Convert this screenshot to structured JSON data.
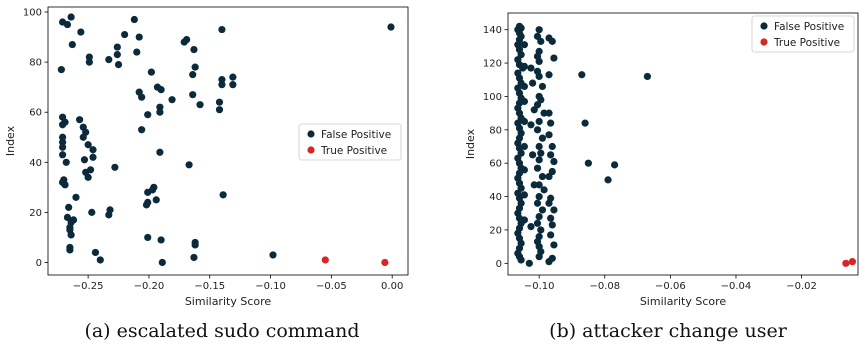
{
  "chart_data": [
    {
      "type": "scatter",
      "caption": "(a) escalated sudo command",
      "xlabel": "Similarity Score",
      "ylabel": "Index",
      "xlim": [
        -0.283,
        0.013
      ],
      "ylim": [
        -5,
        102
      ],
      "xticks": [
        -0.25,
        -0.2,
        -0.15,
        -0.1,
        -0.05,
        0.0
      ],
      "xtick_labels": [
        "−0.25",
        "−0.20",
        "−0.15",
        "−0.10",
        "−0.05",
        "0.00"
      ],
      "yticks": [
        0,
        20,
        40,
        60,
        80,
        100
      ],
      "ytick_labels": [
        "0",
        "20",
        "40",
        "60",
        "80",
        "100"
      ],
      "grid": false,
      "legend_position": "center-right",
      "series": [
        {
          "name": "False Positive",
          "color": "#0b2a3b",
          "points": [
            [
              -0.271,
              96
            ],
            [
              -0.264,
              98
            ],
            [
              -0.267,
              95
            ],
            [
              -0.256,
              92
            ],
            [
              -0.263,
              87
            ],
            [
              -0.249,
              82
            ],
            [
              -0.249,
              80
            ],
            [
              -0.272,
              77
            ],
            [
              -0.212,
              97
            ],
            [
              -0.22,
              91
            ],
            [
              -0.208,
              90
            ],
            [
              -0.226,
              86
            ],
            [
              -0.226,
              83
            ],
            [
              -0.233,
              81
            ],
            [
              -0.225,
              79
            ],
            [
              -0.21,
              84
            ],
            [
              -0.171,
              88
            ],
            [
              -0.169,
              89
            ],
            [
              -0.163,
              85
            ],
            [
              -0.162,
              78
            ],
            [
              -0.164,
              75
            ],
            [
              -0.14,
              93
            ],
            [
              -0.131,
              74
            ],
            [
              -0.14,
              73
            ],
            [
              -0.14,
              71
            ],
            [
              -0.131,
              71
            ],
            [
              -0.198,
              76
            ],
            [
              -0.208,
              68
            ],
            [
              -0.206,
              66
            ],
            [
              -0.193,
              70
            ],
            [
              -0.19,
              69
            ],
            [
              -0.181,
              65
            ],
            [
              -0.191,
              62
            ],
            [
              -0.191,
              60
            ],
            [
              -0.201,
              59
            ],
            [
              -0.206,
              53
            ],
            [
              -0.164,
              67
            ],
            [
              -0.158,
              63
            ],
            [
              -0.142,
              64
            ],
            [
              -0.142,
              61
            ],
            [
              -0.271,
              58
            ],
            [
              -0.269,
              56
            ],
            [
              -0.271,
              55
            ],
            [
              -0.257,
              57
            ],
            [
              -0.254,
              54
            ],
            [
              -0.252,
              52
            ],
            [
              -0.254,
              50
            ],
            [
              -0.25,
              47
            ],
            [
              -0.271,
              50
            ],
            [
              -0.271,
              48
            ],
            [
              -0.271,
              46
            ],
            [
              -0.271,
              43
            ],
            [
              -0.268,
              40
            ],
            [
              -0.246,
              45
            ],
            [
              -0.246,
              42
            ],
            [
              -0.253,
              41
            ],
            [
              -0.248,
              37
            ],
            [
              -0.252,
              36
            ],
            [
              -0.25,
              34
            ],
            [
              -0.27,
              33
            ],
            [
              -0.271,
              32
            ],
            [
              -0.269,
              31
            ],
            [
              -0.228,
              38
            ],
            [
              -0.191,
              44
            ],
            [
              -0.167,
              39
            ],
            [
              -0.26,
              26
            ],
            [
              -0.266,
              22
            ],
            [
              -0.267,
              18
            ],
            [
              -0.262,
              17
            ],
            [
              -0.264,
              16
            ],
            [
              -0.265,
              14
            ],
            [
              -0.265,
              13
            ],
            [
              -0.264,
              11
            ],
            [
              -0.265,
              6
            ],
            [
              -0.265,
              5
            ],
            [
              -0.247,
              20
            ],
            [
              -0.232,
              21
            ],
            [
              -0.233,
              19
            ],
            [
              -0.201,
              28
            ],
            [
              -0.197,
              29
            ],
            [
              -0.196,
              30
            ],
            [
              -0.201,
              24
            ],
            [
              -0.202,
              23
            ],
            [
              -0.194,
              25
            ],
            [
              -0.139,
              27
            ],
            [
              -0.201,
              10
            ],
            [
              -0.19,
              9
            ],
            [
              -0.162,
              8
            ],
            [
              -0.162,
              7
            ],
            [
              -0.244,
              4
            ],
            [
              -0.24,
              1
            ],
            [
              -0.189,
              0
            ],
            [
              -0.163,
              2
            ],
            [
              -0.098,
              3
            ],
            [
              -0.001,
              94
            ]
          ]
        },
        {
          "name": "True Positive",
          "color": "#d62728",
          "points": [
            [
              -0.055,
              1
            ],
            [
              -0.006,
              0
            ]
          ]
        }
      ]
    },
    {
      "type": "scatter",
      "caption": "(b) attacker change user",
      "xlabel": "Similarity Score",
      "ylabel": "Index",
      "xlim": [
        -0.1095,
        -0.0028
      ],
      "ylim": [
        -7,
        150
      ],
      "xticks": [
        -0.1,
        -0.08,
        -0.06,
        -0.04,
        -0.02
      ],
      "xtick_labels": [
        "−0.10",
        "−0.08",
        "−0.06",
        "−0.04",
        "−0.02"
      ],
      "yticks": [
        0,
        20,
        40,
        60,
        80,
        100,
        120,
        140
      ],
      "ytick_labels": [
        "0",
        "20",
        "40",
        "60",
        "80",
        "100",
        "120",
        "140"
      ],
      "grid": false,
      "legend_position": "top-right",
      "series": [
        {
          "name": "False Positive",
          "color": "#0b2a3b",
          "points": [
            [
              -0.106,
              142
            ],
            [
              -0.1055,
              141
            ],
            [
              -0.1065,
              140
            ],
            [
              -0.106,
              138
            ],
            [
              -0.1055,
              136
            ],
            [
              -0.106,
              134
            ],
            [
              -0.1065,
              131
            ],
            [
              -0.106,
              128
            ],
            [
              -0.1055,
              125
            ],
            [
              -0.1065,
              122
            ],
            [
              -0.106,
              119
            ],
            [
              -0.105,
              117
            ],
            [
              -0.1065,
              114
            ],
            [
              -0.106,
              111
            ],
            [
              -0.1055,
              108
            ],
            [
              -0.1065,
              105
            ],
            [
              -0.106,
              102
            ],
            [
              -0.1055,
              99
            ],
            [
              -0.106,
              96
            ],
            [
              -0.1065,
              93
            ],
            [
              -0.106,
              90
            ],
            [
              -0.1055,
              87
            ],
            [
              -0.1065,
              84
            ],
            [
              -0.106,
              81
            ],
            [
              -0.1055,
              78
            ],
            [
              -0.106,
              75
            ],
            [
              -0.1065,
              72
            ],
            [
              -0.106,
              69
            ],
            [
              -0.1055,
              66
            ],
            [
              -0.1065,
              63
            ],
            [
              -0.106,
              60
            ],
            [
              -0.1055,
              57
            ],
            [
              -0.106,
              54
            ],
            [
              -0.1065,
              51
            ],
            [
              -0.106,
              48
            ],
            [
              -0.1055,
              45
            ],
            [
              -0.1065,
              42
            ],
            [
              -0.106,
              39
            ],
            [
              -0.1055,
              36
            ],
            [
              -0.106,
              33
            ],
            [
              -0.1065,
              30
            ],
            [
              -0.106,
              27
            ],
            [
              -0.1055,
              24
            ],
            [
              -0.106,
              21
            ],
            [
              -0.1065,
              18
            ],
            [
              -0.106,
              15
            ],
            [
              -0.1055,
              12
            ],
            [
              -0.106,
              9
            ],
            [
              -0.1065,
              6
            ],
            [
              -0.106,
              4
            ],
            [
              -0.1055,
              2
            ],
            [
              -0.1045,
              131
            ],
            [
              -0.1045,
              118
            ],
            [
              -0.1045,
              106
            ],
            [
              -0.1045,
              97
            ],
            [
              -0.1045,
              85
            ],
            [
              -0.1045,
              70
            ],
            [
              -0.1045,
              56
            ],
            [
              -0.1045,
              41
            ],
            [
              -0.1045,
              26
            ],
            [
              -0.1,
              140
            ],
            [
              -0.1005,
              136
            ],
            [
              -0.0995,
              133
            ],
            [
              -0.1,
              127
            ],
            [
              -0.1005,
              124
            ],
            [
              -0.1,
              121
            ],
            [
              -0.1005,
              115
            ],
            [
              -0.1,
              112
            ],
            [
              -0.099,
              106
            ],
            [
              -0.1,
              100
            ],
            [
              -0.0995,
              98
            ],
            [
              -0.1005,
              95
            ],
            [
              -0.0985,
              90
            ],
            [
              -0.1,
              85
            ],
            [
              -0.1005,
              80
            ],
            [
              -0.099,
              75
            ],
            [
              -0.1,
              70
            ],
            [
              -0.0995,
              66
            ],
            [
              -0.1,
              62
            ],
            [
              -0.1005,
              57
            ],
            [
              -0.099,
              52
            ],
            [
              -0.1,
              47
            ],
            [
              -0.0985,
              44
            ],
            [
              -0.1,
              40
            ],
            [
              -0.1005,
              36
            ],
            [
              -0.099,
              32
            ],
            [
              -0.1,
              28
            ],
            [
              -0.1005,
              24
            ],
            [
              -0.0995,
              20
            ],
            [
              -0.1,
              16
            ],
            [
              -0.1005,
              13
            ],
            [
              -0.1,
              10
            ],
            [
              -0.0995,
              7
            ],
            [
              -0.1,
              4
            ],
            [
              -0.1025,
              117
            ],
            [
              -0.102,
              108
            ],
            [
              -0.1015,
              92
            ],
            [
              -0.1025,
              83
            ],
            [
              -0.102,
              65
            ],
            [
              -0.1015,
              47
            ],
            [
              -0.1025,
              22
            ],
            [
              -0.097,
              135
            ],
            [
              -0.096,
              133
            ],
            [
              -0.0955,
              123
            ],
            [
              -0.097,
              113
            ],
            [
              -0.097,
              90
            ],
            [
              -0.0965,
              84
            ],
            [
              -0.097,
              77
            ],
            [
              -0.096,
              70
            ],
            [
              -0.0965,
              65
            ],
            [
              -0.0955,
              61
            ],
            [
              -0.096,
              55
            ],
            [
              -0.097,
              52
            ],
            [
              -0.0965,
              39
            ],
            [
              -0.097,
              36
            ],
            [
              -0.0955,
              32
            ],
            [
              -0.0965,
              27
            ],
            [
              -0.096,
              23
            ],
            [
              -0.0965,
              17
            ],
            [
              -0.0955,
              11
            ],
            [
              -0.096,
              3
            ],
            [
              -0.097,
              1
            ],
            [
              -0.103,
              0
            ],
            [
              -0.087,
              113
            ],
            [
              -0.067,
              112
            ],
            [
              -0.086,
              84
            ],
            [
              -0.085,
              60
            ],
            [
              -0.077,
              59
            ],
            [
              -0.079,
              50
            ]
          ]
        },
        {
          "name": "True Positive",
          "color": "#d62728",
          "points": [
            [
              -0.0065,
              0
            ],
            [
              -0.0045,
              1
            ]
          ]
        }
      ]
    }
  ]
}
